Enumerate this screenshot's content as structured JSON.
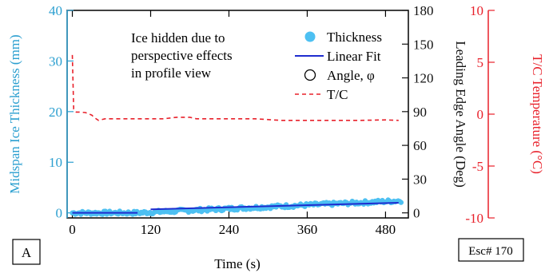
{
  "chart_data": {
    "type": "scatter",
    "x_axis": {
      "label": "Time (s)",
      "range": [
        -8,
        515
      ],
      "ticks": [
        0,
        120,
        240,
        360,
        480
      ]
    },
    "y_axes": {
      "left": {
        "label": "Midspan Ice Thickness (mm)",
        "range": [
          -1,
          40
        ],
        "ticks": [
          0,
          10,
          20,
          30,
          40
        ],
        "color": "#2b9fd0"
      },
      "right_inner": {
        "label": "Leading Edge Angle (Deg)",
        "range": [
          -4.5,
          180
        ],
        "ticks": [
          0,
          30,
          60,
          90,
          120,
          150,
          180
        ],
        "color": "#111111"
      },
      "right_outer": {
        "label": "T/C Temperature (°C)",
        "range": [
          -10,
          10
        ],
        "ticks": [
          -10,
          -5,
          0,
          5,
          10
        ],
        "tick_labels": [
          "-10",
          "-5",
          "0",
          "5",
          "10"
        ],
        "color": "#e8202a"
      }
    },
    "series": [
      {
        "name": "Thickness",
        "kind": "scatter",
        "axis": "left",
        "color": "#4dc0f2",
        "x_range": [
          0,
          505
        ],
        "start_value": 0,
        "end_value": 2.4
      },
      {
        "name": "Linear Fit",
        "kind": "line",
        "axis": "left",
        "color": "#1f2ccf",
        "segments": [
          {
            "x": [
              0,
              100
            ],
            "y": [
              0,
              0
            ]
          },
          {
            "x": [
              120,
              500
            ],
            "y": [
              0.7,
              2.0
            ]
          }
        ]
      },
      {
        "name": "Angle, φ",
        "kind": "marker",
        "axis": "right_inner",
        "color": "#000000",
        "x": [],
        "y": []
      },
      {
        "name": "T/C",
        "kind": "dashed-line",
        "axis": "right_outer",
        "color": "#e8202a",
        "x": [
          0,
          2,
          4,
          6,
          10,
          20,
          30,
          33,
          40,
          50,
          60,
          80,
          100,
          120,
          140,
          160,
          180,
          190,
          200,
          240,
          280,
          320,
          360,
          400,
          440,
          480,
          500
        ],
        "y": [
          5.7,
          0.5,
          0.3,
          0.2,
          0.2,
          0.15,
          -0.1,
          -0.3,
          -0.6,
          -0.45,
          -0.45,
          -0.45,
          -0.45,
          -0.45,
          -0.45,
          -0.3,
          -0.3,
          -0.45,
          -0.45,
          -0.45,
          -0.45,
          -0.6,
          -0.6,
          -0.6,
          -0.6,
          -0.55,
          -0.6
        ]
      }
    ],
    "legend": {
      "placement": "top-right",
      "entries": [
        "Thickness",
        "Linear Fit",
        "Angle, φ",
        "T/C"
      ]
    },
    "annotations": {
      "note_lines": [
        "Ice hidden due to",
        "perspective effects",
        "in profile view"
      ],
      "panel_label": "A",
      "run_label": "Esc# 170"
    }
  }
}
